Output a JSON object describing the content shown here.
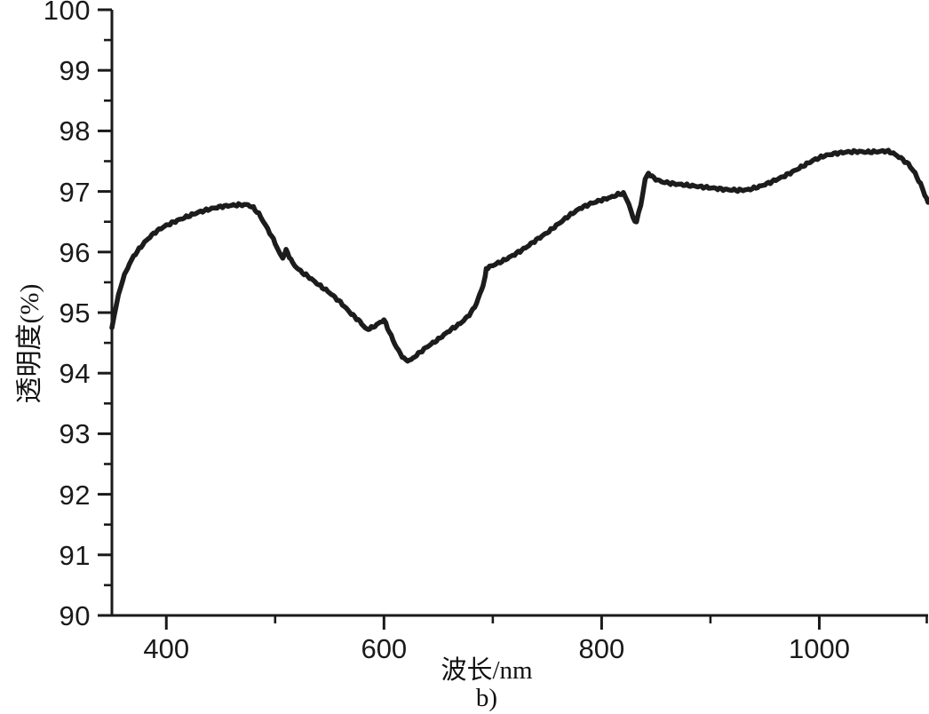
{
  "chart_data": {
    "type": "line",
    "title": "",
    "xlabel": "波长/nm",
    "ylabel": "透明度(%)",
    "caption": "b)",
    "xlim": [
      350,
      1100
    ],
    "ylim": [
      90,
      100
    ],
    "x_ticks_major": [
      400,
      600,
      800,
      1000
    ],
    "x_ticks_minor": [
      500,
      700,
      900,
      1100
    ],
    "y_ticks_major": [
      90,
      91,
      92,
      93,
      94,
      95,
      96,
      97,
      98,
      99,
      100
    ],
    "y_ticks_minor": [
      90.5,
      91.5,
      92.5,
      93.5,
      94.5,
      95.5,
      96.5,
      97.5,
      98.5,
      99.5
    ],
    "grid": false,
    "legend": null,
    "background_color": "#ffffff",
    "axis_color": "#1a1a1a",
    "line_color": "#1c1c1c",
    "series": [
      {
        "name": "透明度",
        "x": [
          350,
          352,
          354,
          356,
          358,
          360,
          363,
          366,
          370,
          375,
          380,
          385,
          390,
          395,
          400,
          410,
          420,
          430,
          440,
          450,
          460,
          468,
          475,
          480,
          485,
          490,
          495,
          500,
          504,
          507,
          510,
          513,
          516,
          520,
          525,
          530,
          540,
          550,
          560,
          570,
          578,
          584,
          590,
          595,
          600,
          605,
          610,
          615,
          620,
          625,
          630,
          640,
          650,
          660,
          670,
          675,
          680,
          685,
          688,
          691,
          693,
          694,
          700,
          710,
          720,
          730,
          740,
          750,
          760,
          770,
          780,
          790,
          800,
          808,
          815,
          820,
          825,
          829,
          832,
          836,
          840,
          843,
          848,
          855,
          865,
          875,
          885,
          895,
          905,
          915,
          925,
          935,
          945,
          955,
          965,
          975,
          985,
          995,
          1005,
          1015,
          1025,
          1035,
          1045,
          1055,
          1062,
          1068,
          1075,
          1082,
          1088,
          1093,
          1097,
          1100
        ],
        "y": [
          94.75,
          94.95,
          95.12,
          95.28,
          95.42,
          95.55,
          95.68,
          95.8,
          95.93,
          96.05,
          96.16,
          96.25,
          96.33,
          96.39,
          96.44,
          96.52,
          96.59,
          96.66,
          96.71,
          96.75,
          96.77,
          96.78,
          96.78,
          96.73,
          96.63,
          96.48,
          96.32,
          96.15,
          95.98,
          95.9,
          96.03,
          95.93,
          95.82,
          95.74,
          95.66,
          95.6,
          95.46,
          95.33,
          95.17,
          94.98,
          94.85,
          94.72,
          94.76,
          94.82,
          94.88,
          94.68,
          94.48,
          94.32,
          94.21,
          94.22,
          94.3,
          94.44,
          94.56,
          94.7,
          94.82,
          94.9,
          95.0,
          95.15,
          95.3,
          95.45,
          95.58,
          95.73,
          95.78,
          95.86,
          95.96,
          96.07,
          96.2,
          96.32,
          96.46,
          96.6,
          96.72,
          96.8,
          96.86,
          96.9,
          96.95,
          96.97,
          96.8,
          96.55,
          96.5,
          96.78,
          97.2,
          97.3,
          97.22,
          97.16,
          97.13,
          97.11,
          97.09,
          97.07,
          97.05,
          97.03,
          97.02,
          97.03,
          97.08,
          97.15,
          97.23,
          97.32,
          97.42,
          97.52,
          97.59,
          97.63,
          97.65,
          97.66,
          97.65,
          97.66,
          97.67,
          97.63,
          97.55,
          97.45,
          97.3,
          97.12,
          96.95,
          96.82
        ]
      }
    ]
  }
}
